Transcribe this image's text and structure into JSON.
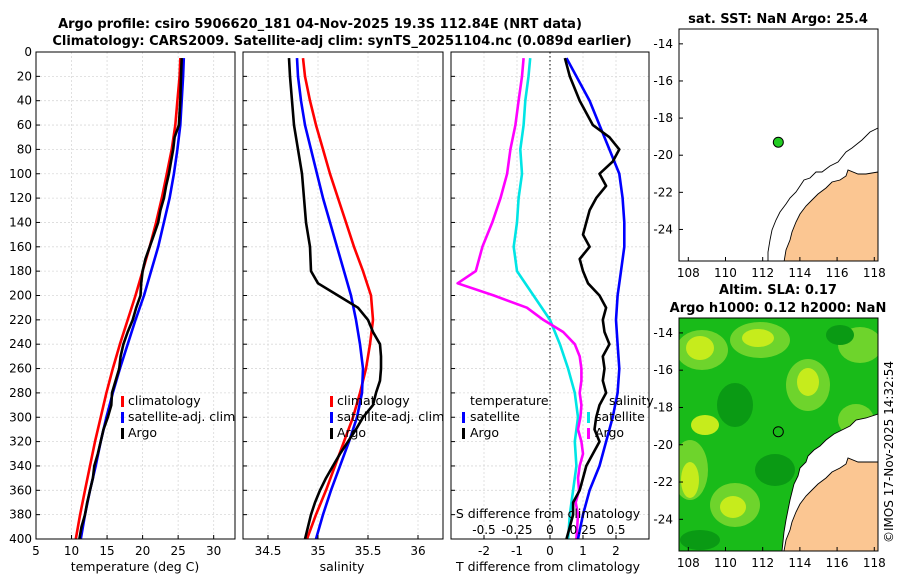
{
  "chart_data": [
    {
      "type": "line",
      "panel": "temperature",
      "title": "Argo profile: csiro 5906620_181 04-Nov-2025 19.3S 112.84E (NRT data)",
      "subtitle": "Climatology: CARS2009. Satellite-adj clim: synTS_20251104.nc (0.089d earlier)",
      "xlabel": "temperature (deg C)",
      "ylabel": "",
      "xlim": [
        5,
        33
      ],
      "ylim": [
        400,
        0
      ],
      "xticks": [
        5,
        10,
        15,
        20,
        25,
        30
      ],
      "yticks": [
        0,
        20,
        40,
        60,
        80,
        100,
        120,
        140,
        160,
        180,
        200,
        220,
        240,
        260,
        280,
        300,
        320,
        340,
        360,
        380,
        400
      ],
      "legend": [
        "climatology",
        "satellite-adj. clim",
        "Argo"
      ],
      "series": [
        {
          "name": "climatology",
          "color": "#ff0000",
          "y": [
            5,
            20,
            40,
            60,
            80,
            100,
            120,
            140,
            160,
            180,
            200,
            220,
            240,
            260,
            280,
            300,
            320,
            340,
            360,
            380,
            400
          ],
          "x": [
            25.3,
            25.2,
            24.9,
            24.6,
            24.1,
            23.4,
            22.7,
            21.9,
            21.0,
            20.0,
            19.0,
            17.9,
            16.8,
            15.8,
            14.9,
            14.1,
            13.3,
            12.6,
            11.9,
            11.2,
            10.6
          ]
        },
        {
          "name": "satellite-adj. clim",
          "color": "#0000ff",
          "y": [
            5,
            20,
            40,
            60,
            80,
            100,
            120,
            140,
            160,
            180,
            200,
            220,
            240,
            260,
            280,
            300,
            320,
            340,
            360,
            380,
            400
          ],
          "x": [
            25.8,
            25.7,
            25.5,
            25.3,
            24.9,
            24.4,
            23.8,
            23.0,
            22.2,
            21.2,
            20.2,
            19.0,
            17.9,
            16.8,
            15.8,
            14.9,
            14.1,
            13.4,
            12.6,
            11.9,
            11.3
          ]
        },
        {
          "name": "Argo",
          "color": "#000000",
          "y": [
            5,
            20,
            40,
            60,
            70,
            80,
            90,
            100,
            110,
            120,
            130,
            140,
            150,
            160,
            170,
            180,
            190,
            200,
            210,
            220,
            230,
            240,
            250,
            260,
            270,
            280,
            290,
            300,
            310,
            320,
            330,
            340,
            350,
            360,
            370,
            380,
            390,
            400
          ],
          "x": [
            25.5,
            25.4,
            25.3,
            25.1,
            24.5,
            24.3,
            24.0,
            23.7,
            23.3,
            23.0,
            22.5,
            22.2,
            21.6,
            21.0,
            20.4,
            20.0,
            19.8,
            19.7,
            19.1,
            18.6,
            17.9,
            17.3,
            16.9,
            16.7,
            16.2,
            15.7,
            15.6,
            15.1,
            14.5,
            14.1,
            13.7,
            13.2,
            13.0,
            12.6,
            12.2,
            11.9,
            11.4,
            11.1
          ]
        }
      ]
    },
    {
      "type": "line",
      "panel": "salinity",
      "xlabel": "salinity",
      "xlim": [
        34.25,
        36.25
      ],
      "ylim": [
        400,
        0
      ],
      "xticks": [
        34.5,
        35,
        35.5,
        36
      ],
      "xtick_labels": [
        "34.5",
        "35",
        "35.5",
        "36"
      ],
      "legend": [
        "climatology",
        "satellite-adj. clim",
        "Argo"
      ],
      "series": [
        {
          "name": "climatology",
          "color": "#ff0000",
          "y": [
            5,
            20,
            40,
            60,
            80,
            100,
            120,
            140,
            160,
            180,
            200,
            220,
            240,
            260,
            280,
            300,
            320,
            340,
            360,
            380,
            400
          ],
          "x": [
            34.85,
            34.87,
            34.92,
            34.98,
            35.05,
            35.12,
            35.2,
            35.28,
            35.36,
            35.45,
            35.53,
            35.55,
            35.52,
            35.48,
            35.42,
            35.35,
            35.26,
            35.17,
            35.08,
            34.98,
            34.89
          ]
        },
        {
          "name": "satellite-adj. clim",
          "color": "#0000ff",
          "y": [
            5,
            20,
            40,
            60,
            80,
            100,
            120,
            140,
            160,
            180,
            200,
            220,
            240,
            260,
            280,
            300,
            320,
            340,
            360,
            380,
            400
          ],
          "x": [
            34.79,
            34.8,
            34.83,
            34.87,
            34.93,
            34.99,
            35.05,
            35.12,
            35.19,
            35.26,
            35.33,
            35.38,
            35.42,
            35.45,
            35.44,
            35.39,
            35.31,
            35.22,
            35.13,
            35.05,
            34.98
          ]
        },
        {
          "name": "Argo",
          "color": "#000000",
          "y": [
            5,
            20,
            40,
            60,
            80,
            100,
            120,
            140,
            160,
            180,
            190,
            200,
            210,
            220,
            230,
            240,
            250,
            260,
            270,
            280,
            290,
            300,
            310,
            320,
            330,
            340,
            350,
            360,
            370,
            380,
            390,
            400
          ],
          "x": [
            34.71,
            34.72,
            34.74,
            34.76,
            34.8,
            34.84,
            34.86,
            34.88,
            34.92,
            34.93,
            35.0,
            35.2,
            35.4,
            35.5,
            35.55,
            35.62,
            35.63,
            35.63,
            35.62,
            35.58,
            35.55,
            35.45,
            35.38,
            35.3,
            35.22,
            35.15,
            35.08,
            35.02,
            34.97,
            34.93,
            34.9,
            34.87
          ]
        }
      ]
    },
    {
      "type": "line",
      "panel": "difference",
      "xlabel": "T difference from climatology",
      "xlabel_top": "S difference from climatology",
      "xlim": [
        -3,
        3
      ],
      "ylim": [
        400,
        0
      ],
      "xticks": [
        -2,
        -1,
        0,
        1,
        2
      ],
      "xtick_labels": [
        "-2",
        "-1",
        "0",
        "1",
        "2"
      ],
      "s_ticks": [
        "-0.5",
        "-0.25",
        "0",
        "0.25",
        "0.5"
      ],
      "s_tick_positions_data": [
        -2,
        -1,
        0,
        1,
        2
      ],
      "legend_temperature": {
        "title": "temperature",
        "items": [
          "satellite",
          "Argo"
        ]
      },
      "legend_salinity": {
        "title": "salinity",
        "items": [
          "satellite",
          "Argo"
        ]
      },
      "series": [
        {
          "name": "T satellite",
          "color": "#00e5e5",
          "y": [
            5,
            20,
            40,
            60,
            80,
            100,
            120,
            140,
            160,
            180,
            200,
            220,
            240,
            260,
            280,
            300,
            320,
            340,
            360,
            380,
            400
          ],
          "x": [
            -0.6,
            -0.65,
            -0.75,
            -0.8,
            -0.9,
            -0.85,
            -0.95,
            -1.0,
            -1.1,
            -1.0,
            -0.5,
            0.0,
            0.3,
            0.55,
            0.75,
            0.85,
            0.75,
            0.8,
            0.7,
            0.6,
            0.55
          ]
        },
        {
          "name": "S satellite",
          "color": "#ff00ff",
          "y": [
            5,
            20,
            40,
            60,
            80,
            100,
            120,
            140,
            160,
            180,
            190,
            200,
            210,
            220,
            230,
            240,
            250,
            260,
            270,
            280,
            290,
            300,
            310,
            320,
            330,
            340,
            350,
            360,
            370,
            380,
            400
          ],
          "x": [
            -0.8,
            -0.85,
            -0.95,
            -1.05,
            -1.2,
            -1.3,
            -1.5,
            -1.75,
            -2.05,
            -2.25,
            -2.8,
            -1.7,
            -0.7,
            -0.2,
            0.4,
            0.75,
            0.9,
            0.95,
            0.95,
            0.9,
            0.95,
            0.92,
            0.85,
            0.95,
            1.0,
            0.9,
            0.85,
            0.88,
            0.78,
            0.85,
            0.8
          ]
        },
        {
          "name": "T Argo",
          "color": "#0000ff",
          "y": [
            5,
            20,
            40,
            60,
            80,
            100,
            120,
            140,
            160,
            180,
            200,
            220,
            240,
            260,
            280,
            300,
            320,
            340,
            360,
            380,
            400
          ],
          "x": [
            0.5,
            0.8,
            1.2,
            1.5,
            1.8,
            2.1,
            2.2,
            2.25,
            2.25,
            2.15,
            2.05,
            2.0,
            2.05,
            2.1,
            2.05,
            1.9,
            1.7,
            1.5,
            1.2,
            1.0,
            0.85
          ]
        },
        {
          "name": "S Argo",
          "color": "#000000",
          "y": [
            5,
            20,
            40,
            60,
            70,
            80,
            90,
            100,
            110,
            120,
            130,
            140,
            150,
            160,
            170,
            180,
            190,
            200,
            210,
            220,
            230,
            240,
            250,
            260,
            270,
            280,
            290,
            300,
            310,
            320,
            330,
            340,
            350,
            360,
            370,
            380,
            390,
            400
          ],
          "x": [
            0.45,
            0.6,
            0.9,
            1.3,
            1.8,
            2.1,
            1.9,
            1.5,
            1.7,
            1.4,
            1.2,
            1.1,
            1.0,
            1.2,
            0.9,
            1.0,
            1.15,
            1.5,
            1.7,
            1.6,
            1.65,
            1.8,
            1.6,
            1.65,
            1.6,
            1.7,
            1.5,
            1.4,
            1.35,
            1.5,
            1.3,
            1.1,
            1.0,
            0.9,
            0.7,
            0.7,
            0.6,
            0.5
          ]
        }
      ]
    },
    {
      "type": "map",
      "panel": "sst-map",
      "title": "sat. SST: NaN Argo: 25.4",
      "xlim": [
        107.5,
        118.2
      ],
      "ylim": [
        -25.7,
        -13.2
      ],
      "xticks": [
        108,
        110,
        112,
        114,
        116,
        118
      ],
      "yticks": [
        -14,
        -16,
        -18,
        -20,
        -22,
        -24
      ],
      "float_position": {
        "lon": 112.84,
        "lat": -19.3
      },
      "marker_color": "#22cc22"
    },
    {
      "type": "map",
      "panel": "sla-map",
      "title": "Altim. SLA: 0.17",
      "subtitle": "Argo h1000: 0.12 h2000: NaN",
      "xlim": [
        107.5,
        118.2
      ],
      "ylim": [
        -25.7,
        -13.2
      ],
      "xticks": [
        108,
        110,
        112,
        114,
        116,
        118
      ],
      "yticks": [
        -14,
        -16,
        -18,
        -20,
        -22,
        -24
      ],
      "float_position": {
        "lon": 112.84,
        "lat": -19.3
      }
    }
  ],
  "footer": {
    "credit": "©IMOS 17-Nov-2025 14:32:54"
  },
  "colors": {
    "land": "#fbc692",
    "sla_green": "#19bb19",
    "sla_yellow": "#e6f51e"
  }
}
